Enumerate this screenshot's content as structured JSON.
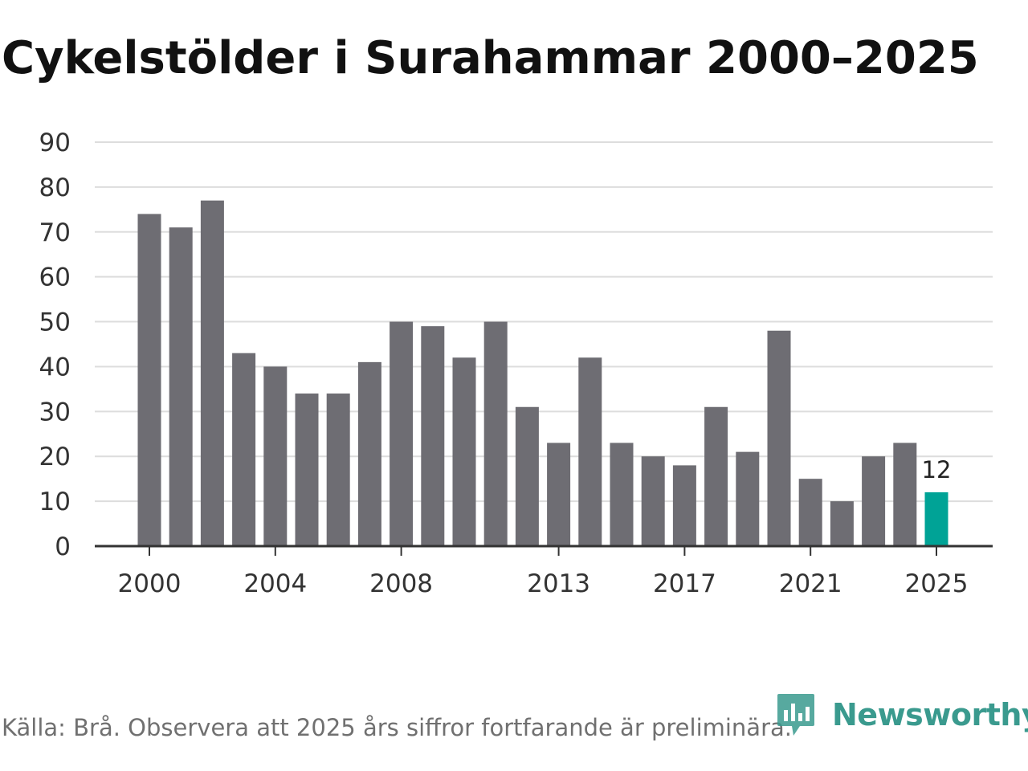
{
  "chart_data": {
    "type": "bar",
    "title": "Cykelstölder i Surahammar 2000–2025",
    "xlabel": "",
    "ylabel": "",
    "x": [
      2000,
      2001,
      2002,
      2003,
      2004,
      2005,
      2006,
      2007,
      2008,
      2009,
      2010,
      2011,
      2012,
      2013,
      2014,
      2015,
      2016,
      2017,
      2018,
      2019,
      2020,
      2021,
      2022,
      2023,
      2024,
      2025
    ],
    "values": [
      74,
      71,
      77,
      43,
      40,
      34,
      34,
      41,
      50,
      49,
      42,
      50,
      31,
      23,
      42,
      23,
      20,
      18,
      31,
      21,
      48,
      15,
      10,
      20,
      23,
      12
    ],
    "ylim": [
      0,
      90
    ],
    "yticks": [
      0,
      10,
      20,
      30,
      40,
      50,
      60,
      70,
      80,
      90
    ],
    "xtick_labels": [
      "2000",
      "2004",
      "2008",
      "2013",
      "2017",
      "2021",
      "2025"
    ],
    "highlight": {
      "x": 2025,
      "label": "12"
    },
    "colors": {
      "bar": "#6e6d73",
      "highlight": "#00a396",
      "grid": "#dddddd",
      "axis": "#333333"
    },
    "grid": true,
    "legend": "none"
  },
  "footer": {
    "source": "Källa: Brå. Observera att 2025 års siffror fortfarande är preliminära."
  },
  "logo": {
    "text": "Newsworthy",
    "icon": "bar-chart-logo-icon"
  }
}
